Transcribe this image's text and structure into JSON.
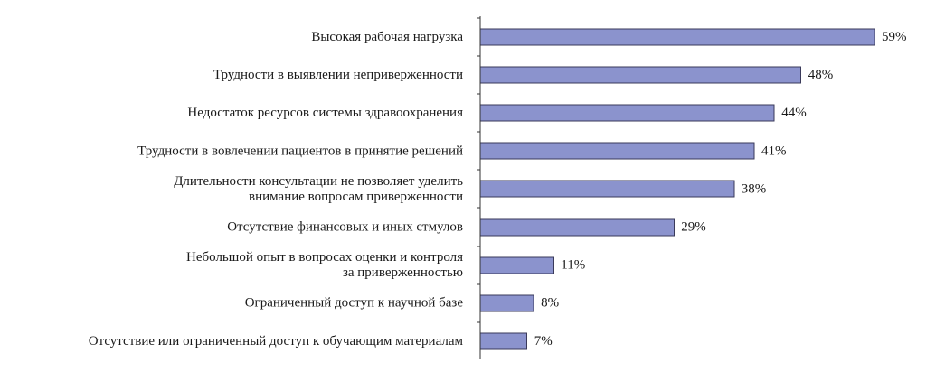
{
  "chart_data": {
    "type": "bar",
    "orientation": "horizontal",
    "categories": [
      [
        "Высокая рабочая нагрузка"
      ],
      [
        "Трудности в выявлении неприверженности"
      ],
      [
        "Недостаток ресурсов системы здравоохранения"
      ],
      [
        "Трудности в вовлечении пациентов в принятие решений"
      ],
      [
        "Длительности консультации не позволяет уделить",
        "внимание вопросам приверженности"
      ],
      [
        "Отсутствие финансовых и иных стмулов"
      ],
      [
        "Небольшой опыт в вопросах оценки и контроля",
        "за приверженностью"
      ],
      [
        "Ограниченный доступ к научной базе"
      ],
      [
        "Отсутствие или ограниченный доступ к обучающим материалам"
      ]
    ],
    "values": [
      59,
      48,
      44,
      41,
      38,
      29,
      11,
      8,
      7
    ],
    "value_labels": [
      "59%",
      "48%",
      "44%",
      "41%",
      "38%",
      "29%",
      "11%",
      "8%",
      "7%"
    ],
    "xlim": [
      0,
      100
    ],
    "bar_color": "#8b93cd",
    "bar_edge_color": "#3a3a5a",
    "grid": false,
    "legend": "none"
  }
}
